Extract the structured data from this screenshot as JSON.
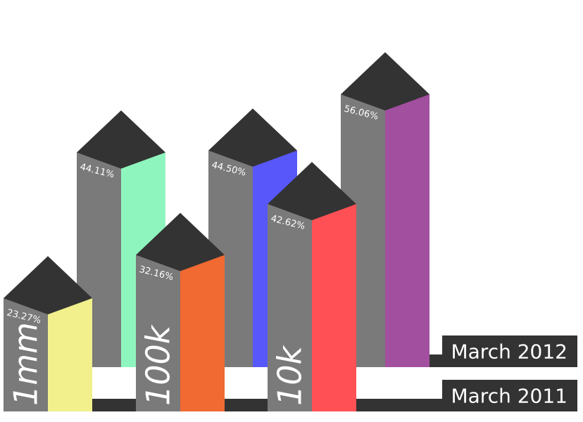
{
  "chart_data": {
    "type": "bar",
    "categories": [
      "1mm",
      "100k",
      "10k"
    ],
    "series": [
      {
        "name": "March 2012",
        "values": [
          44.11,
          44.5,
          56.06
        ],
        "colors": [
          "#8ff5bf",
          "#5858fa",
          "#a34fa0"
        ]
      },
      {
        "name": "March 2011",
        "values": [
          23.27,
          32.16,
          42.62
        ],
        "colors": [
          "#f1f08c",
          "#f06a32",
          "#ff5055"
        ]
      }
    ],
    "value_labels": {
      "March 2012": [
        "44.11%",
        "44.50%",
        "56.06%"
      ],
      "March 2011": [
        "23.27%",
        "32.16%",
        "42.62%"
      ]
    },
    "side_color": "#7a7a7a",
    "top_color": "#333333",
    "base_color": "#333333",
    "title": "",
    "xlabel": "",
    "ylabel": ""
  }
}
